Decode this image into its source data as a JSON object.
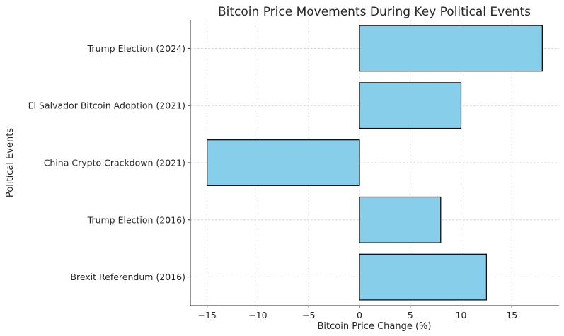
{
  "chart_data": {
    "type": "bar",
    "orientation": "horizontal",
    "title": "Bitcoin Price Movements During Key Political Events",
    "xlabel": "Bitcoin Price Change (%)",
    "ylabel": "Political Events",
    "categories": [
      "Brexit Referendum (2016)",
      "Trump Election (2016)",
      "China Crypto Crackdown (2021)",
      "El Salvador Bitcoin Adoption (2021)",
      "Trump Election (2024)"
    ],
    "values": [
      12.5,
      8,
      -15,
      10,
      18
    ],
    "xlim": [
      -16.65,
      19.65
    ],
    "xticks": [
      -15,
      -10,
      -5,
      0,
      5,
      10,
      15
    ],
    "xtick_labels": [
      "−15",
      "−10",
      "−5",
      "0",
      "5",
      "10",
      "15"
    ],
    "grid": true,
    "colors": {
      "bar_fill": "#87ceeb",
      "bar_edge": "#000000",
      "grid": "#cccccc"
    }
  }
}
